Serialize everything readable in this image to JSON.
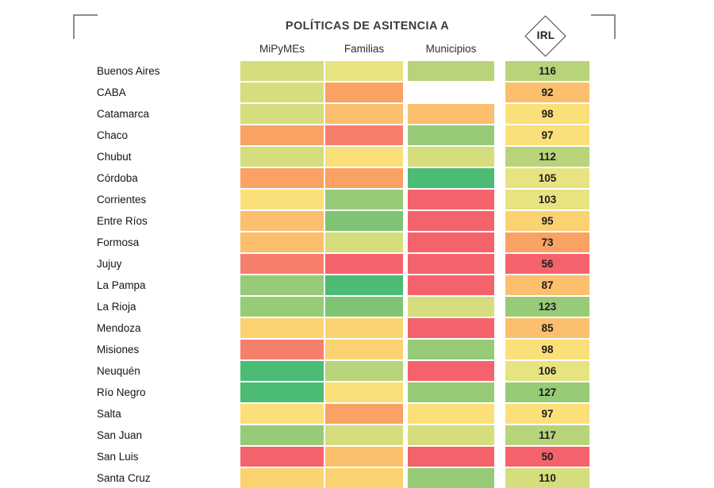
{
  "chart_data": {
    "type": "heatmap",
    "title": "POLÍTICAS DE ASITENCIA A",
    "score_column": "IRL",
    "columns": [
      "MiPyMEs",
      "Familias",
      "Municipios"
    ],
    "legend_position": "none",
    "grid": false,
    "palette": {
      "green4": "#4cbb74",
      "green3": "#7fc474",
      "green2": "#97cb77",
      "green1": "#b7d47a",
      "yellow_green": "#d5dd7d",
      "pale_yellow_green": "#e8e381",
      "yellow": "#fbe07a",
      "yellow_orange": "#fbd271",
      "light_orange": "#fbbf6d",
      "orange": "#f9a263",
      "salmon": "#f67f6c",
      "red": "#f4636b",
      "blank": "#ffffff"
    },
    "rows": [
      "Buenos Aires",
      "CABA",
      "Catamarca",
      "Chaco",
      "Chubut",
      "Córdoba",
      "Corrientes",
      "Entre Ríos",
      "Formosa",
      "Jujuy",
      "La Pampa",
      "La Rioja",
      "Mendoza",
      "Misiones",
      "Neuquén",
      "Río Negro",
      "Salta",
      "San Juan",
      "San Luis",
      "Santa Cruz"
    ],
    "cells": [
      [
        "yellow_green",
        "pale_yellow_green",
        "green1"
      ],
      [
        "yellow_green",
        "orange",
        "blank"
      ],
      [
        "yellow_green",
        "light_orange",
        "light_orange"
      ],
      [
        "orange",
        "salmon",
        "green2"
      ],
      [
        "yellow_green",
        "yellow",
        "yellow_green"
      ],
      [
        "orange",
        "orange",
        "green4"
      ],
      [
        "yellow",
        "green2",
        "red"
      ],
      [
        "light_orange",
        "green3",
        "red"
      ],
      [
        "light_orange",
        "yellow_green",
        "red"
      ],
      [
        "salmon",
        "red",
        "red"
      ],
      [
        "green2",
        "green4",
        "red"
      ],
      [
        "green2",
        "green3",
        "yellow_green"
      ],
      [
        "yellow_orange",
        "yellow_orange",
        "red"
      ],
      [
        "salmon",
        "yellow_orange",
        "green2"
      ],
      [
        "green4",
        "green1",
        "red"
      ],
      [
        "green4",
        "yellow",
        "green2"
      ],
      [
        "yellow",
        "orange",
        "yellow"
      ],
      [
        "green2",
        "yellow_green",
        "yellow_green"
      ],
      [
        "red",
        "light_orange",
        "red"
      ],
      [
        "yellow_orange",
        "yellow_orange",
        "green2"
      ]
    ],
    "irl_values": [
      116,
      92,
      98,
      97,
      112,
      105,
      103,
      95,
      73,
      56,
      87,
      123,
      85,
      98,
      106,
      127,
      97,
      117,
      50,
      110
    ],
    "irl_colors": [
      "green1",
      "light_orange",
      "yellow",
      "yellow",
      "green1",
      "pale_yellow_green",
      "pale_yellow_green",
      "yellow_orange",
      "orange",
      "red",
      "light_orange",
      "green2",
      "light_orange",
      "yellow",
      "pale_yellow_green",
      "green2",
      "yellow",
      "green1",
      "red",
      "yellow_green"
    ]
  }
}
